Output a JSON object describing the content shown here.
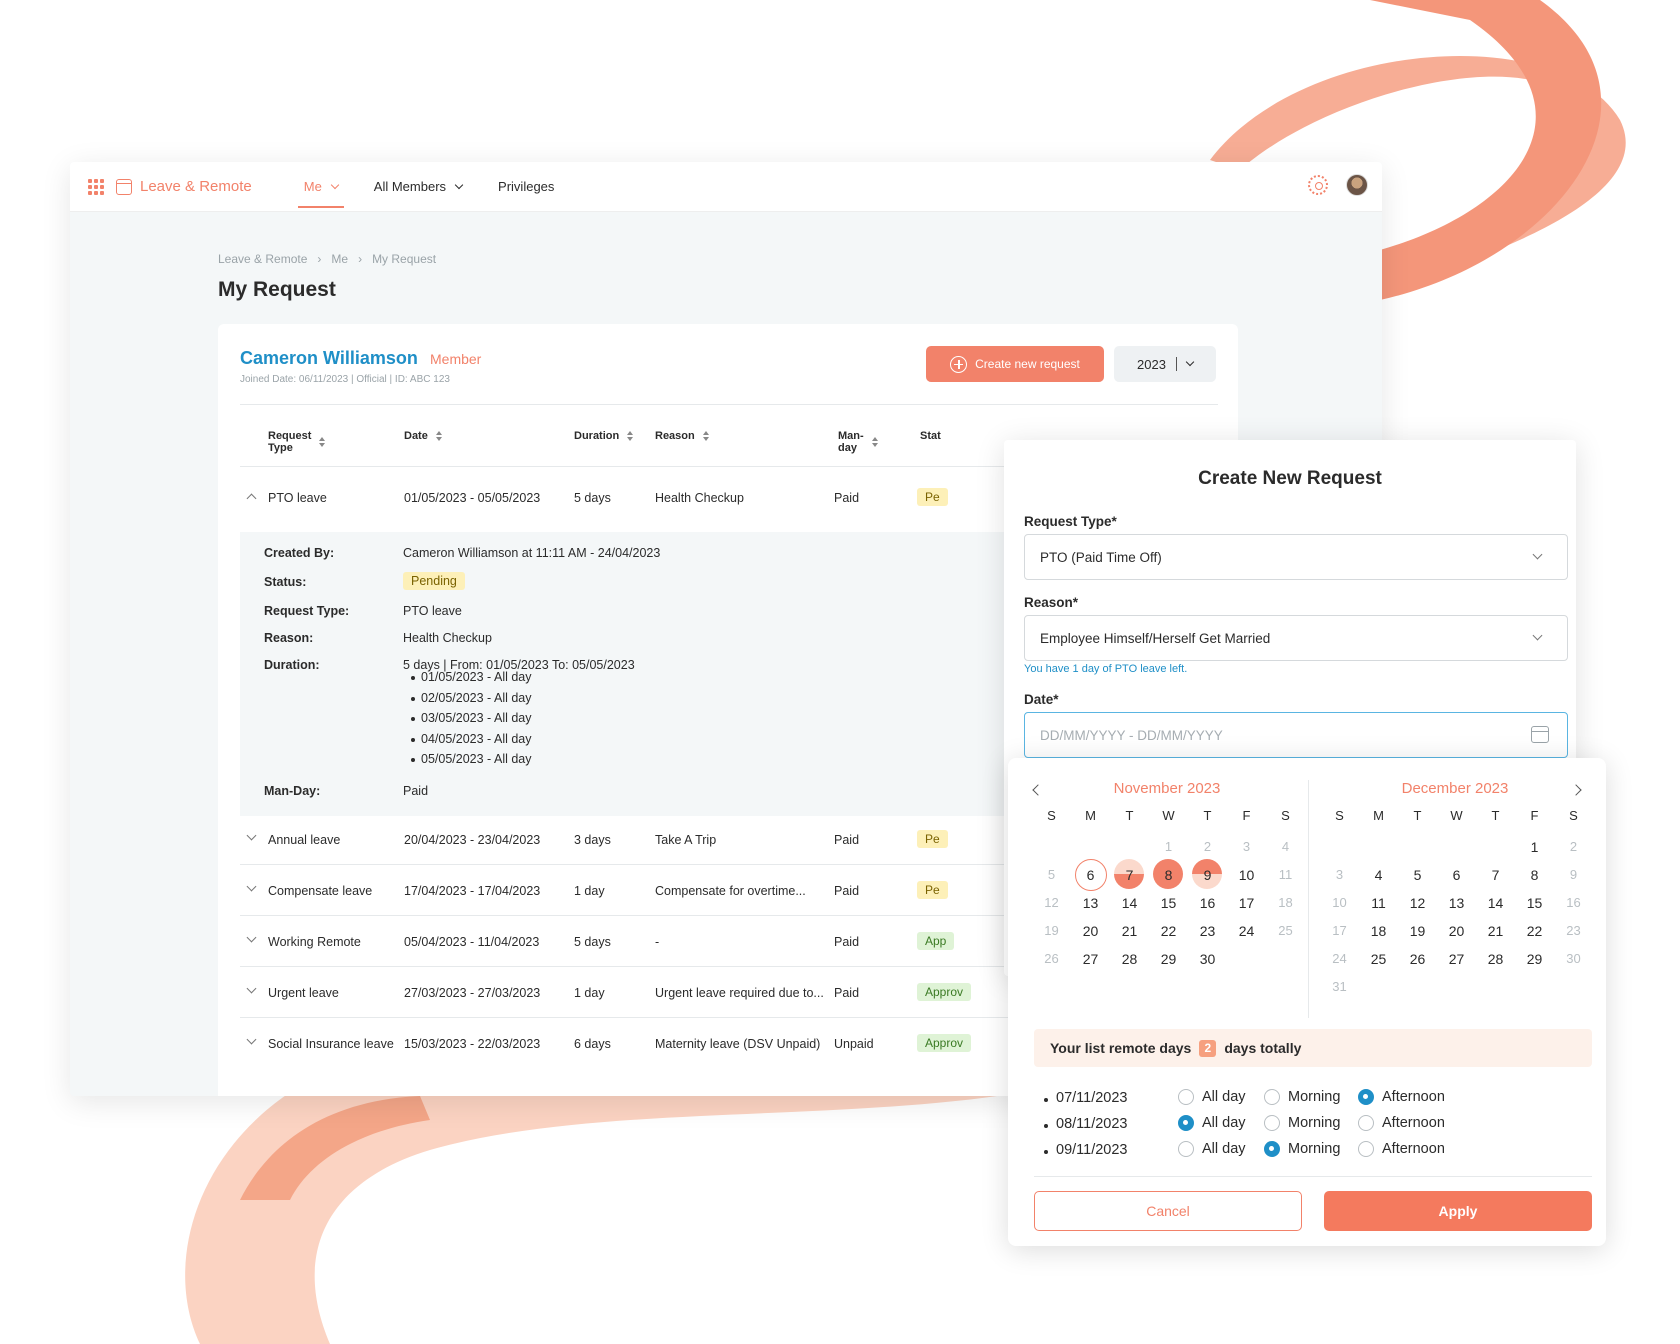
{
  "app": {
    "brand": "Leave & Remote",
    "nav": [
      {
        "label": "Me",
        "active": true
      },
      {
        "label": "All Members",
        "active": false
      },
      {
        "label": "Privileges",
        "active": false
      }
    ],
    "accent_color": "#f2826a",
    "link_color": "#1f8fc7"
  },
  "breadcrumb": [
    "Leave & Remote",
    "Me",
    "My Request"
  ],
  "page_title": "My Request",
  "profile": {
    "name": "Cameron Williamson",
    "role": "Member",
    "meta": "Joined Date: 06/11/2023  |  Official  |  ID: ABC 123"
  },
  "actions": {
    "create_label": "Create new request",
    "year": "2023"
  },
  "table": {
    "headers": [
      "Request Type",
      "Date",
      "Duration",
      "Reason",
      "Man-day",
      "Stat"
    ],
    "rows": [
      {
        "type": "PTO leave",
        "date": "01/05/2023 - 05/05/2023",
        "duration": "5 days",
        "reason": "Health Checkup",
        "manday": "Paid",
        "status": "Pe"
      },
      {
        "type": "Annual leave",
        "date": "20/04/2023 - 23/04/2023",
        "duration": "3 days",
        "reason": "Take A Trip",
        "manday": "Paid",
        "status": "Pe"
      },
      {
        "type": "Compensate leave",
        "date": "17/04/2023 - 17/04/2023",
        "duration": "1 day",
        "reason": "Compensate for overtime...",
        "manday": "Paid",
        "status": "Pe"
      },
      {
        "type": "Working Remote",
        "date": "05/04/2023 - 11/04/2023",
        "duration": "5 days",
        "reason": "-",
        "manday": "Paid",
        "status": "App"
      },
      {
        "type": "Urgent leave",
        "date": "27/03/2023 - 27/03/2023",
        "duration": "1 day",
        "reason": "Urgent leave required due to...",
        "manday": "Paid",
        "status": "Approv"
      },
      {
        "type": "Social Insurance leave",
        "date": "15/03/2023 - 22/03/2023",
        "duration": "6 days",
        "reason": "Maternity leave (DSV Unpaid)",
        "manday": "Unpaid",
        "status": "Approv"
      }
    ]
  },
  "details": {
    "created_by_label": "Created By:",
    "created_by": "Cameron Williamson at 11:11 AM - 24/04/2023",
    "status_label": "Status:",
    "status": "Pending",
    "type_label": "Request Type:",
    "type": "PTO leave",
    "reason_label": "Reason:",
    "reason": "Health Checkup",
    "duration_label": "Duration:",
    "duration": "5 days | From: 01/05/2023 To: 05/05/2023",
    "days": [
      "01/05/2023 - All day",
      "02/05/2023 - All day",
      "03/05/2023 - All day",
      "04/05/2023 - All day",
      "05/05/2023 - All day"
    ],
    "manday_label": "Man-Day:",
    "manday": "Paid"
  },
  "modal": {
    "title": "Create New Request",
    "request_type_label": "Request Type*",
    "request_type_value": "PTO (Paid Time Off)",
    "reason_label": "Reason*",
    "reason_value": "Employee Himself/Herself Get Married",
    "hint": "You have 1 day of PTO leave left.",
    "date_label": "Date*",
    "date_placeholder": "DD/MM/YYYY - DD/MM/YYYY"
  },
  "picker": {
    "weekdays": [
      "S",
      "M",
      "T",
      "W",
      "T",
      "F",
      "S"
    ],
    "months": [
      {
        "title": "November 2023",
        "days": [
          {
            "d": "",
            "s": ""
          },
          {
            "d": "",
            "s": ""
          },
          {
            "d": "",
            "s": ""
          },
          {
            "d": "1",
            "s": "muted"
          },
          {
            "d": "2",
            "s": "muted"
          },
          {
            "d": "3",
            "s": "muted"
          },
          {
            "d": "4",
            "s": "muted"
          },
          {
            "d": "5",
            "s": "muted"
          },
          {
            "d": "6",
            "s": "ring"
          },
          {
            "d": "7",
            "s": "half"
          },
          {
            "d": "8",
            "s": "full"
          },
          {
            "d": "9",
            "s": "half2"
          },
          {
            "d": "10",
            "s": ""
          },
          {
            "d": "11",
            "s": "muted"
          },
          {
            "d": "12",
            "s": "muted"
          },
          {
            "d": "13",
            "s": ""
          },
          {
            "d": "14",
            "s": ""
          },
          {
            "d": "15",
            "s": ""
          },
          {
            "d": "16",
            "s": ""
          },
          {
            "d": "17",
            "s": ""
          },
          {
            "d": "18",
            "s": "muted"
          },
          {
            "d": "19",
            "s": "muted"
          },
          {
            "d": "20",
            "s": ""
          },
          {
            "d": "21",
            "s": ""
          },
          {
            "d": "22",
            "s": ""
          },
          {
            "d": "23",
            "s": ""
          },
          {
            "d": "24",
            "s": ""
          },
          {
            "d": "25",
            "s": "muted"
          },
          {
            "d": "26",
            "s": "muted"
          },
          {
            "d": "27",
            "s": ""
          },
          {
            "d": "28",
            "s": ""
          },
          {
            "d": "29",
            "s": ""
          },
          {
            "d": "30",
            "s": ""
          }
        ]
      },
      {
        "title": "December 2023",
        "days": [
          {
            "d": "",
            "s": ""
          },
          {
            "d": "",
            "s": ""
          },
          {
            "d": "",
            "s": ""
          },
          {
            "d": "",
            "s": ""
          },
          {
            "d": "",
            "s": ""
          },
          {
            "d": "1",
            "s": ""
          },
          {
            "d": "2",
            "s": "muted"
          },
          {
            "d": "3",
            "s": "muted"
          },
          {
            "d": "4",
            "s": ""
          },
          {
            "d": "5",
            "s": ""
          },
          {
            "d": "6",
            "s": ""
          },
          {
            "d": "7",
            "s": ""
          },
          {
            "d": "8",
            "s": ""
          },
          {
            "d": "9",
            "s": "muted"
          },
          {
            "d": "10",
            "s": "muted"
          },
          {
            "d": "11",
            "s": ""
          },
          {
            "d": "12",
            "s": ""
          },
          {
            "d": "13",
            "s": ""
          },
          {
            "d": "14",
            "s": ""
          },
          {
            "d": "15",
            "s": ""
          },
          {
            "d": "16",
            "s": "muted"
          },
          {
            "d": "17",
            "s": "muted"
          },
          {
            "d": "18",
            "s": ""
          },
          {
            "d": "19",
            "s": ""
          },
          {
            "d": "20",
            "s": ""
          },
          {
            "d": "21",
            "s": ""
          },
          {
            "d": "22",
            "s": ""
          },
          {
            "d": "23",
            "s": "muted"
          },
          {
            "d": "24",
            "s": "muted"
          },
          {
            "d": "25",
            "s": ""
          },
          {
            "d": "26",
            "s": ""
          },
          {
            "d": "27",
            "s": ""
          },
          {
            "d": "28",
            "s": ""
          },
          {
            "d": "29",
            "s": ""
          },
          {
            "d": "30",
            "s": "muted"
          },
          {
            "d": "31",
            "s": "muted"
          }
        ]
      }
    ],
    "summary_prefix": "Your list remote days",
    "summary_count": "2",
    "summary_suffix": "days totally",
    "options": [
      "All day",
      "Morning",
      "Afternoon"
    ],
    "remote_days": [
      {
        "date": "07/11/2023",
        "selected": "Afternoon"
      },
      {
        "date": "08/11/2023",
        "selected": "All day"
      },
      {
        "date": "09/11/2023",
        "selected": "Morning"
      }
    ],
    "cancel_label": "Cancel",
    "apply_label": "Apply"
  }
}
